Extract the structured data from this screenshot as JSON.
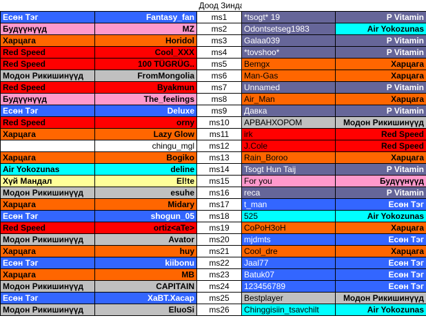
{
  "title": "Доод Зиндаа",
  "team_colors": {
    "Есөн Тэг": {
      "bg": "#3366ff",
      "fg": "#ffffff"
    },
    "Будүүнүүд": {
      "bg": "#ff99cc",
      "fg": "#000000"
    },
    "Харцага": {
      "bg": "#ff6600",
      "fg": "#000000"
    },
    "Red Speed": {
      "bg": "#ff0000",
      "fg": "#000000"
    },
    "Модон Рикишинүүд": {
      "bg": "#c0c0c0",
      "fg": "#000000"
    },
    "Air Yokozunas": {
      "bg": "#00ffff",
      "fg": "#000000"
    },
    "Хүй Мандал": {
      "bg": "#ffff99",
      "fg": "#000000"
    },
    "P Vitamin": {
      "bg": "#666699",
      "fg": "#ffffff"
    },
    "none": {
      "bg": "#ffffff",
      "fg": "#000000"
    }
  },
  "rows": [
    {
      "lteam": "Есөн Тэг",
      "lname": "Fantasy_fan",
      "slot": "ms1",
      "rname": "*tsogt* 19",
      "rteam": "P Vitamin",
      "lk": "Есөн Тэг",
      "rk": "P Vitamin"
    },
    {
      "lteam": "Будүүнүүд",
      "lname": "MZ",
      "slot": "ms2",
      "rname": "Odontsetseg1983",
      "rteam": "Air Yokozunas",
      "lk": "Будүүнүүд",
      "rk": "P Vitamin",
      "rteamk": "Air Yokozunas"
    },
    {
      "lteam": "Харцага",
      "lname": "Horidol",
      "slot": "ms3",
      "rname": "Galaa039",
      "rteam": "P Vitamin",
      "lk": "Харцага",
      "rk": "P Vitamin"
    },
    {
      "lteam": "Red Speed",
      "lname": "Cool_XXX",
      "slot": "ms4",
      "rname": "*tovshoo*",
      "rteam": "P Vitamin",
      "lk": "Red Speed",
      "rk": "P Vitamin"
    },
    {
      "lteam": "Red Speed",
      "lname": "100 TÜGRÜG..",
      "slot": "ms5",
      "rname": "Bemgx",
      "rteam": "Харцага",
      "lk": "Red Speed",
      "rk": "Харцага"
    },
    {
      "lteam": "Модон Рикишинүүд",
      "lname": "FromMongolia",
      "slot": "ms6",
      "rname": "Man-Gas",
      "rteam": "Харцага",
      "lk": "Модон Рикишинүүд",
      "rk": "Харцага"
    },
    {
      "lteam": "Red Speed",
      "lname": "Byakmun",
      "slot": "ms7",
      "rname": "Unnamed",
      "rteam": "P Vitamin",
      "lk": "Red Speed",
      "rk": "P Vitamin"
    },
    {
      "lteam": "Будүүнүүд",
      "lname": "The_feelings",
      "slot": "ms8",
      "rname": "Air_Man",
      "rteam": "Харцага",
      "lk": "Будүүнүүд",
      "rk": "Харцага"
    },
    {
      "lteam": "Есөн Тэг",
      "lname": "Deluxe",
      "slot": "ms9",
      "rname": "Давка",
      "rteam": "P Vitamin",
      "lk": "Есөн Тэг",
      "rk": "P Vitamin"
    },
    {
      "lteam": "Red Speed",
      "lname": "orny",
      "slot": "ms10",
      "rname": "АРВАНХОРОМ",
      "rteam": "Модон Рикишинүүд",
      "lk": "Red Speed",
      "rk": "Модон Рикишинүүд"
    },
    {
      "lteam": "Харцага",
      "lname": "Lazy Glow",
      "slot": "ms11",
      "rname": "irk",
      "rteam": "Red Speed",
      "lk": "Харцага",
      "rk": "Red Speed"
    },
    {
      "lteam": "",
      "lname": "chingu_mgl",
      "slot": "ms12",
      "rname": "J.Cole",
      "rteam": "Red Speed",
      "lk": "none",
      "rk": "Red Speed"
    },
    {
      "lteam": "Харцага",
      "lname": "Bogiko",
      "slot": "ms13",
      "rname": "Rain_Boroo",
      "rteam": "Харцага",
      "lk": "Харцага",
      "rk": "Харцага"
    },
    {
      "lteam": "Air Yokozunas",
      "lname": "deline",
      "slot": "ms14",
      "rname": "Tsogt Hun Taij",
      "rteam": "P Vitamin",
      "lk": "Air Yokozunas",
      "rk": "P Vitamin"
    },
    {
      "lteam": "Хүй Мандал",
      "lname": "El!te",
      "slot": "ms15",
      "rname": "For you",
      "rteam": "Будүүнүүд",
      "lk": "Хүй Мандал",
      "rk": "Будүүнүүд"
    },
    {
      "lteam": "Модон Рикишинүүд",
      "lname": "esuhe",
      "slot": "ms16",
      "rname": "reca",
      "rteam": "P Vitamin",
      "lk": "Модон Рикишинүүд",
      "rk": "P Vitamin"
    },
    {
      "lteam": "Харцага",
      "lname": "Midary",
      "slot": "ms17",
      "rname": "t_man",
      "rteam": "Есөн Тэг",
      "lk": "Харцага",
      "rk": "Есөн Тэг"
    },
    {
      "lteam": "Есөн Тэг",
      "lname": "shogun_05",
      "slot": "ms18",
      "rname": "525",
      "rteam": "Air Yokozunas",
      "lk": "Есөн Тэг",
      "rk": "Air Yokozunas"
    },
    {
      "lteam": "Red Speed",
      "lname": "ortiz<aTe>",
      "slot": "ms19",
      "rname": "CoPoH3oH",
      "rteam": "Харцага",
      "lk": "Red Speed",
      "rk": "Харцага"
    },
    {
      "lteam": "Модон Рикишинүүд",
      "lname": "Avator",
      "slot": "ms20",
      "rname": "mjdmts",
      "rteam": "Есөн Тэг",
      "lk": "Модон Рикишинүүд",
      "rk": "Есөн Тэг"
    },
    {
      "lteam": "Харцага",
      "lname": "huy",
      "slot": "ms21",
      "rname": "Cool_dre",
      "rteam": "Харцага",
      "lk": "Харцага",
      "rk": "Харцага"
    },
    {
      "lteam": "Есөн Тэг",
      "lname": "kiibonu",
      "slot": "ms22",
      "rname": "Jaal77",
      "rteam": "Есөн Тэг",
      "lk": "Есөн Тэг",
      "rk": "Есөн Тэг"
    },
    {
      "lteam": "Харцага",
      "lname": "MB",
      "slot": "ms23",
      "rname": "Batuk07",
      "rteam": "Есөн Тэг",
      "lk": "Харцага",
      "rk": "Есөн Тэг"
    },
    {
      "lteam": "Модон Рикишинүүд",
      "lname": "CAPITAIN",
      "slot": "ms24",
      "rname": "123456789",
      "rteam": "Есөн Тэг",
      "lk": "Модон Рикишинүүд",
      "rk": "Есөн Тэг"
    },
    {
      "lteam": "Есөн Тэг",
      "lname": "XaBT.Xacap",
      "slot": "ms25",
      "rname": "Bestplayer",
      "rteam": "Модон Рикишинүүд",
      "lk": "Есөн Тэг",
      "rk": "Модон Рикишинүүд"
    },
    {
      "lteam": "Модон Рикишинүүд",
      "lname": "EluoSi",
      "slot": "ms26",
      "rname": "Chinggisiin_tsavchilt",
      "rteam": "Air Yokozunas",
      "lk": "Модон Рикишинүүд",
      "rk": "Air Yokozunas"
    }
  ]
}
